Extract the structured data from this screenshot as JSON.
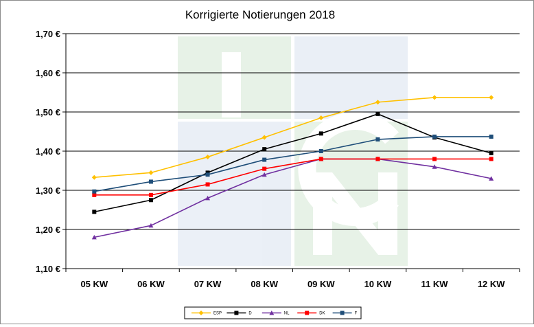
{
  "chart_data": {
    "type": "line",
    "title": "Korrigierte Notierungen 2018",
    "xlabel": "",
    "ylabel": "",
    "categories": [
      "05 KW",
      "06 KW",
      "07 KW",
      "08 KW",
      "09 KW",
      "10 KW",
      "11 KW",
      "12 KW"
    ],
    "ylim": [
      1.1,
      1.7
    ],
    "y_ticks": [
      "1,10 €",
      "1,20 €",
      "1,30 €",
      "1,40 €",
      "1,50 €",
      "1,60 €",
      "1,70 €"
    ],
    "grid": true,
    "legend_position": "bottom",
    "series": [
      {
        "name": "ESP",
        "color": "#FFC000",
        "marker": "diamond",
        "values": [
          1.333,
          1.345,
          1.385,
          1.435,
          1.485,
          1.525,
          1.537,
          1.537
        ]
      },
      {
        "name": "D",
        "color": "#000000",
        "marker": "square",
        "values": [
          1.245,
          1.275,
          1.345,
          1.405,
          1.445,
          1.495,
          1.435,
          1.395
        ]
      },
      {
        "name": "NL",
        "color": "#7030A0",
        "marker": "triangle",
        "values": [
          1.18,
          1.21,
          1.28,
          1.34,
          1.38,
          1.38,
          1.36,
          1.33
        ]
      },
      {
        "name": "DK",
        "color": "#FF0000",
        "marker": "square",
        "values": [
          1.288,
          1.288,
          1.315,
          1.355,
          1.38,
          1.38,
          1.38,
          1.38
        ]
      },
      {
        "name": "F",
        "color": "#1F4E79",
        "marker": "square",
        "values": [
          1.297,
          1.322,
          1.34,
          1.378,
          1.4,
          1.43,
          1.437,
          1.437
        ]
      }
    ]
  }
}
